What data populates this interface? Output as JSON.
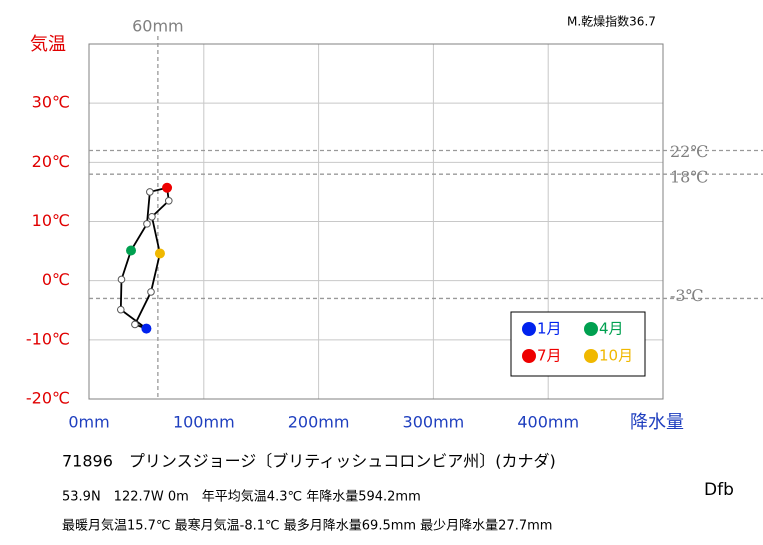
{
  "chart_data": {
    "type": "climograph",
    "station": "71896　プリンスジョージ〔ブリティッシュコロンビア州〕(カナダ)",
    "info_line_1": "53.9N　122.7W 0m　年平均気温4.3℃ 年降水量594.2mm",
    "info_line_2": "最暖月気温15.7℃ 最寒月気温-8.1℃ 最多月降水量69.5mm 最少月降水量27.7mm",
    "climate_class": "Dfb",
    "dryness_index": "M.乾燥指数36.7",
    "y_label": "気温",
    "x_label": "降水量",
    "x": [
      50,
      27.7,
      28.3,
      36.6,
      50.5,
      53,
      68,
      69.5,
      54.8,
      61.8,
      54,
      40
    ],
    "values": [
      -8.1,
      -4.9,
      0.2,
      5.1,
      9.6,
      15.0,
      15.7,
      13.5,
      10.8,
      4.6,
      -1.9,
      -7.4
    ],
    "point_colors": [
      "#0022ee",
      null,
      null,
      "#00a050",
      null,
      null,
      "#ee0000",
      null,
      null,
      "#f0b800",
      null,
      null
    ],
    "line_color": "#000000",
    "xlim": [
      0,
      500
    ],
    "xticks": [
      {
        "value": 0,
        "label": "0mm"
      },
      {
        "value": 100,
        "label": "100mm"
      },
      {
        "value": 200,
        "label": "200mm"
      },
      {
        "value": 300,
        "label": "300mm"
      },
      {
        "value": 400,
        "label": "400mm"
      }
    ],
    "ylim": [
      -20,
      40
    ],
    "yticks": [
      {
        "value": -20,
        "label": "-20℃"
      },
      {
        "value": -10,
        "label": "-10℃"
      },
      {
        "value": 0,
        "label": "0℃"
      },
      {
        "value": 10,
        "label": "10℃"
      },
      {
        "value": 20,
        "label": "20℃"
      },
      {
        "value": 30,
        "label": "30℃"
      }
    ],
    "grid": true,
    "reference_lines": {
      "y": [
        {
          "value": 22,
          "label": "22℃"
        },
        {
          "value": 18,
          "label": "18℃"
        },
        {
          "value": -3,
          "label": "-3℃"
        }
      ],
      "x": [
        {
          "value": 60,
          "label": "60mm"
        }
      ]
    },
    "legend": {
      "position": "lower right",
      "entries": [
        {
          "name": "1月",
          "color": "#0022ee"
        },
        {
          "name": "4月",
          "color": "#00a050"
        },
        {
          "name": "7月",
          "color": "#ee0000"
        },
        {
          "name": "10月",
          "color": "#f0b800"
        }
      ]
    }
  }
}
